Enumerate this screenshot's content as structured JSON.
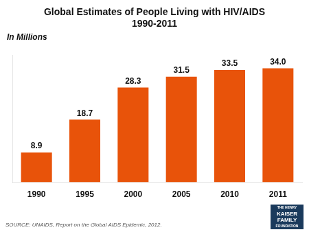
{
  "chart_data": {
    "type": "bar",
    "title": "Global Estimates of People Living with HIV/AIDS\n1990-2011",
    "subtitle": "In Millions",
    "annotations": [
      "SOURCE: UNAIDS, Report on the Global AIDS Epidemic, 2012.",
      "THE HENRY\nKAISER\nFAMILY\nFOUNDATION"
    ],
    "categories": [
      "1990",
      "1995",
      "2000",
      "2005",
      "2010",
      "2011"
    ],
    "values": [
      8.9,
      18.7,
      28.3,
      31.5,
      33.5,
      34.0
    ],
    "value_labels": [
      "8.9",
      "18.7",
      "28.3",
      "31.5",
      "33.5",
      "34.0"
    ],
    "color": "#E8530A",
    "ylim": [
      0,
      38
    ],
    "grid": false,
    "data_labels": true,
    "tick_labels": "x"
  }
}
